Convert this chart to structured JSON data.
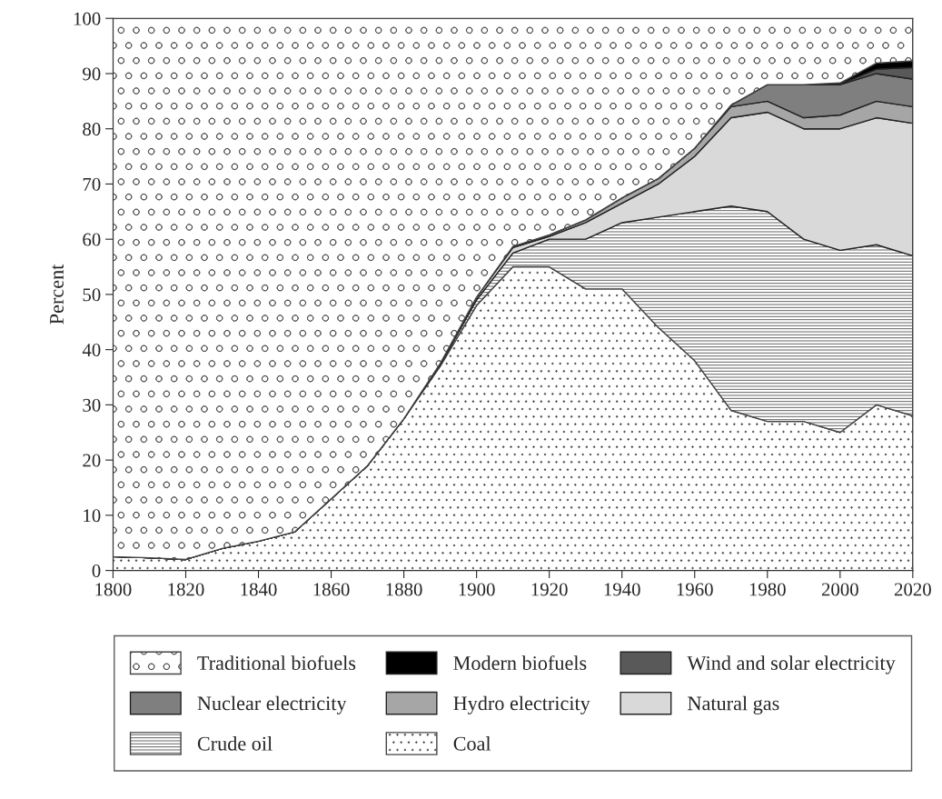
{
  "chart_data": {
    "type": "area",
    "stacked": true,
    "ylabel": "Percent",
    "x": [
      1800,
      1810,
      1820,
      1830,
      1840,
      1850,
      1860,
      1870,
      1880,
      1890,
      1900,
      1910,
      1920,
      1930,
      1940,
      1950,
      1960,
      1970,
      1980,
      1990,
      2000,
      2010,
      2020
    ],
    "series": [
      {
        "name": "Coal",
        "color": "#444444",
        "values": [
          2.5,
          2.3,
          2,
          4,
          5.3,
          7,
          13,
          19,
          27.5,
          37,
          48,
          55,
          55,
          51,
          51,
          44,
          38,
          29,
          27,
          27,
          25,
          30,
          28
        ]
      },
      {
        "name": "Crude oil",
        "color": "#444444",
        "values": [
          0,
          0,
          0,
          0,
          0,
          0,
          0,
          0,
          0,
          0.3,
          1,
          2.5,
          5,
          9,
          12,
          20,
          27,
          37,
          38,
          33,
          33,
          29,
          29
        ]
      },
      {
        "name": "Natural gas",
        "color": "#d9d9d9",
        "values": [
          0,
          0,
          0,
          0,
          0,
          0,
          0,
          0,
          0,
          0.2,
          0.5,
          1,
          0.5,
          3,
          3.5,
          6,
          10,
          16,
          18,
          20,
          22,
          23,
          24
        ]
      },
      {
        "name": "Hydro electricity",
        "color": "#a6a6a6",
        "values": [
          0,
          0,
          0,
          0,
          0,
          0,
          0,
          0,
          0,
          0,
          0,
          0.2,
          0.3,
          0.5,
          1,
          1,
          1.5,
          2,
          2,
          2,
          2.5,
          3,
          3
        ]
      },
      {
        "name": "Nuclear electricity",
        "color": "#7f7f7f",
        "values": [
          0,
          0,
          0,
          0,
          0,
          0,
          0,
          0,
          0,
          0,
          0,
          0,
          0,
          0,
          0,
          0,
          0,
          0.3,
          3,
          6,
          5.5,
          5,
          5
        ]
      },
      {
        "name": "Wind and solar electricity",
        "color": "#595959",
        "values": [
          0,
          0,
          0,
          0,
          0,
          0,
          0,
          0,
          0,
          0,
          0,
          0,
          0,
          0,
          0,
          0,
          0,
          0,
          0,
          0,
          0.1,
          0.8,
          2.1
        ]
      },
      {
        "name": "Modern biofuels",
        "color": "#000000",
        "values": [
          0,
          0,
          0,
          0,
          0,
          0,
          0,
          0,
          0,
          0,
          0,
          0,
          0,
          0,
          0,
          0,
          0,
          0,
          0,
          0,
          0.2,
          1.1,
          1.2
        ]
      },
      {
        "name": "Traditional biofuels",
        "color": "#444444",
        "values": [
          97.5,
          97.7,
          98,
          96,
          94.7,
          93,
          87,
          81,
          72.5,
          62.5,
          50.5,
          41.3,
          39.2,
          36.5,
          32.5,
          29,
          23.5,
          15.7,
          12,
          12,
          11.7,
          8.1,
          7.7
        ]
      }
    ],
    "xlim": [
      1800,
      2020
    ],
    "xticks": [
      1800,
      1820,
      1840,
      1860,
      1880,
      1900,
      1920,
      1940,
      1960,
      1980,
      2000,
      2020
    ],
    "ylim": [
      0,
      100
    ],
    "yticks": [
      0,
      10,
      20,
      30,
      40,
      50,
      60,
      70,
      80,
      90,
      100
    ],
    "legend": "bottom"
  }
}
